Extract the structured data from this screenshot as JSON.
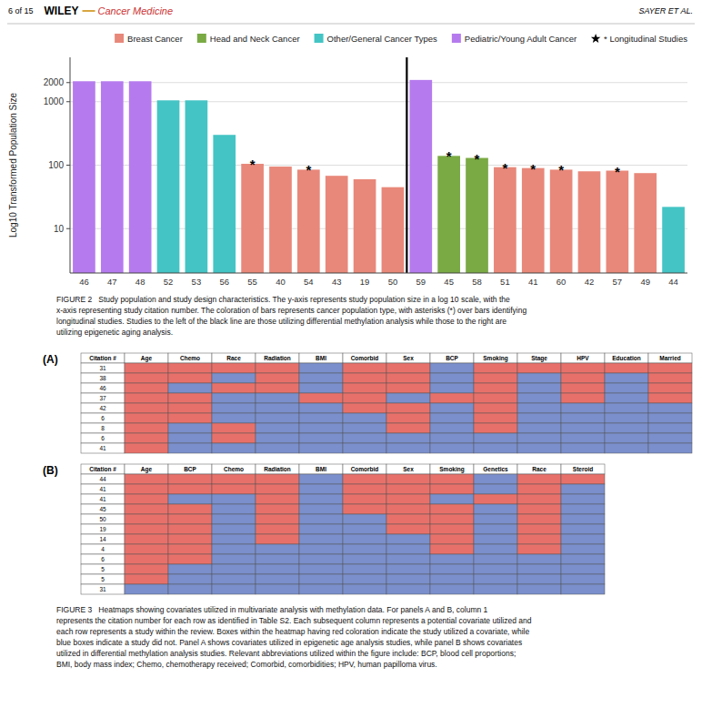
{
  "header": {
    "left": "6 of 15",
    "publisher": "WILEY",
    "journal": "Cancer Medicine",
    "right": "SAYER ET AL."
  },
  "chart_data": [
    {
      "type": "bar",
      "categories": [
        "46",
        "47",
        "48",
        "52",
        "53",
        "56",
        "55",
        "40",
        "54",
        "43",
        "19",
        "50",
        "59",
        "45",
        "58",
        "51",
        "41",
        "60",
        "42",
        "57",
        "49",
        "44"
      ],
      "values": [
        2100,
        2100,
        2100,
        1050,
        1050,
        300,
        105,
        95,
        85,
        68,
        60,
        45,
        2200,
        140,
        130,
        93,
        90,
        85,
        80,
        82,
        75,
        22
      ],
      "colors": [
        "#b57bee",
        "#b57bee",
        "#b57bee",
        "#44c4c4",
        "#44c4c4",
        "#44c4c4",
        "#e8887a",
        "#e8887a",
        "#e8887a",
        "#e8887a",
        "#e8887a",
        "#e8887a",
        "#b57bee",
        "#7aaa44",
        "#7aaa44",
        "#e8887a",
        "#e8887a",
        "#e8887a",
        "#e8887a",
        "#e8887a",
        "#e8887a",
        "#44c4c4"
      ],
      "ylabel": "Log10 Transformed Population Size",
      "log": "y",
      "ylim": [
        2,
        5000
      ],
      "yticks": [
        10,
        100,
        1000,
        2000
      ],
      "grid": true,
      "legend": "upper right",
      "legend_entries": [
        {
          "name": "Breast Cancer",
          "color": "#e8887a"
        },
        {
          "name": "Head and Neck Cancer",
          "color": "#7aaa44"
        },
        {
          "name": "Other/General Cancer Types",
          "color": "#44c4c4"
        },
        {
          "name": "Pediatric/Young Adult Cancer",
          "color": "#b57bee"
        },
        {
          "name": "* Longitudinal Studies",
          "color": "black",
          "marker": "star"
        }
      ],
      "annotations": [
        {
          "text": "*",
          "x": "55"
        },
        {
          "text": "*",
          "x": "54"
        },
        {
          "text": "*",
          "x": "45"
        },
        {
          "text": "*",
          "x": "58"
        },
        {
          "text": "*",
          "x": "51"
        },
        {
          "text": "*",
          "x": "41"
        },
        {
          "text": "*",
          "x": "60"
        },
        {
          "text": "*",
          "x": "57"
        }
      ],
      "divider_after": "50",
      "caption": "FIGURE 2   Study population and study design characteristics. The y-axis represents study population size in a log 10 scale, with the\nx-axis representing study citation number. The coloration of bars represents cancer population type, with asterisks (*) over bars identifying\nlongitudinal studies. Studies to the left of the black line are those utilizing differential methylation analysis while those to the right are\nutilizing epigenetic aging analysis."
    },
    {
      "type": "heatmap",
      "title": "(A)",
      "row_header": "Citation #",
      "x": [
        "Age",
        "Chemo",
        "Race",
        "Radiation",
        "BMI",
        "Comorbid",
        "Sex",
        "BCP",
        "Smoking",
        "Stage",
        "HPV",
        "Education",
        "Married"
      ],
      "y": [
        "31",
        "38",
        "46",
        "37",
        "42",
        "6",
        "8",
        "6",
        "41"
      ],
      "values": [
        [
          1,
          1,
          1,
          1,
          0,
          1,
          1,
          0,
          1,
          1,
          1,
          1,
          1
        ],
        [
          1,
          1,
          0,
          1,
          0,
          1,
          1,
          0,
          1,
          0,
          1,
          0,
          1
        ],
        [
          1,
          0,
          1,
          1,
          0,
          1,
          1,
          0,
          1,
          0,
          1,
          0,
          1
        ],
        [
          1,
          1,
          0,
          0,
          1,
          1,
          0,
          1,
          1,
          0,
          1,
          0,
          1
        ],
        [
          1,
          1,
          0,
          0,
          0,
          1,
          1,
          0,
          1,
          0,
          0,
          0,
          0
        ],
        [
          1,
          1,
          0,
          0,
          0,
          0,
          1,
          0,
          1,
          0,
          0,
          0,
          0
        ],
        [
          1,
          0,
          1,
          0,
          0,
          0,
          1,
          0,
          1,
          0,
          0,
          0,
          0
        ],
        [
          1,
          0,
          1,
          0,
          0,
          0,
          0,
          0,
          0,
          0,
          0,
          0,
          0
        ],
        [
          1,
          0,
          0,
          0,
          0,
          0,
          0,
          0,
          0,
          0,
          0,
          0,
          0
        ]
      ],
      "cell_colors": {
        "0": "#7a8fcc",
        "1": "#e8706a"
      }
    },
    {
      "type": "heatmap",
      "title": "(B)",
      "row_header": "Citation #",
      "x": [
        "Age",
        "BCP",
        "Chemo",
        "Radiation",
        "BMI",
        "Comorbid",
        "Sex",
        "Smoking",
        "Genetics",
        "Race",
        "Steroid"
      ],
      "y": [
        "44",
        "41",
        "41",
        "45",
        "50",
        "19",
        "14",
        "4",
        "6",
        "5",
        "5",
        "31"
      ],
      "values": [
        [
          1,
          1,
          1,
          1,
          0,
          1,
          1,
          1,
          0,
          1,
          1
        ],
        [
          1,
          1,
          1,
          1,
          0,
          1,
          1,
          1,
          0,
          1,
          0
        ],
        [
          1,
          0,
          0,
          1,
          0,
          1,
          1,
          0,
          1,
          1,
          0
        ],
        [
          1,
          1,
          0,
          1,
          0,
          1,
          1,
          1,
          0,
          1,
          0
        ],
        [
          1,
          1,
          0,
          1,
          0,
          0,
          1,
          1,
          0,
          1,
          0
        ],
        [
          1,
          1,
          0,
          1,
          0,
          0,
          1,
          1,
          0,
          1,
          0
        ],
        [
          1,
          1,
          0,
          1,
          0,
          0,
          0,
          1,
          0,
          1,
          0
        ],
        [
          1,
          1,
          0,
          0,
          0,
          0,
          0,
          1,
          0,
          1,
          0
        ],
        [
          1,
          1,
          0,
          0,
          0,
          0,
          0,
          0,
          0,
          0,
          0
        ],
        [
          1,
          0,
          0,
          0,
          0,
          0,
          0,
          0,
          0,
          0,
          0
        ],
        [
          1,
          0,
          0,
          0,
          0,
          0,
          0,
          0,
          0,
          0,
          0
        ],
        [
          0,
          0,
          0,
          0,
          0,
          0,
          0,
          0,
          0,
          0,
          0
        ]
      ],
      "cell_colors": {
        "0": "#7a8fcc",
        "1": "#e8706a"
      },
      "caption": "FIGURE 3   Heatmaps showing covariates utilized in multivariate analysis with methylation data. For panels A and B, column 1\nrepresents the citation number for each row as identified in Table S2. Each subsequent column represents a potential covariate utilized and\neach row represents a study within the review. Boxes within the heatmap having red coloration indicate the study utilized a covariate, while\nblue boxes indicate a study did not. Panel A shows covariates utilized in epigenetic age analysis studies, while panel B shows covariates\nutilized in differential methylation analysis studies. Relevant abbreviations utilized within the figure include: BCP, blood cell proportions;\nBMI, body mass index; Chemo, chemotherapy received; Comorbid, comorbidities; HPV, human papilloma virus."
    }
  ]
}
